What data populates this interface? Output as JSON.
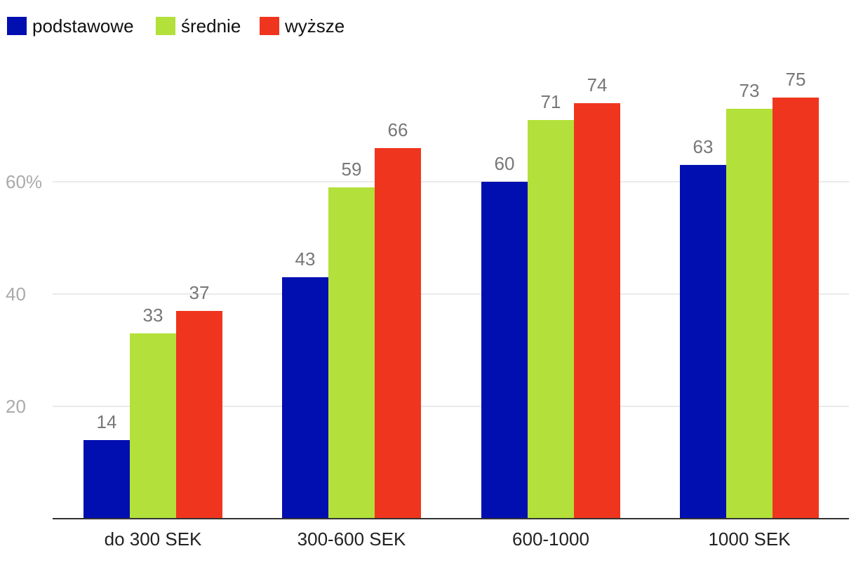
{
  "chart_data": {
    "type": "bar",
    "title": "",
    "xlabel": "",
    "ylabel": "",
    "categories": [
      "do 300 SEK",
      "300-600 SEK",
      "600-1000",
      "1000 SEK"
    ],
    "series": [
      {
        "name": "podstawowe",
        "color": "#020fb0",
        "values": [
          14,
          43,
          60,
          63
        ]
      },
      {
        "name": "średnie",
        "color": "#b3e03a",
        "values": [
          33,
          59,
          71,
          73
        ]
      },
      {
        "name": "wyższe",
        "color": "#f0351e",
        "values": [
          37,
          66,
          74,
          75
        ]
      }
    ],
    "ylim": [
      0,
      80
    ],
    "yticks": [
      {
        "value": 20,
        "label": "20"
      },
      {
        "value": 40,
        "label": "40"
      },
      {
        "value": 60,
        "label": "60%"
      }
    ],
    "grid": true,
    "legend_position": "top-left",
    "colors": {
      "gridline": "#dddddd",
      "axis": "#333333",
      "tick_label": "#aaaaaa",
      "data_label": "#777777",
      "category_label": "#222222",
      "legend_text": "#111111"
    }
  }
}
